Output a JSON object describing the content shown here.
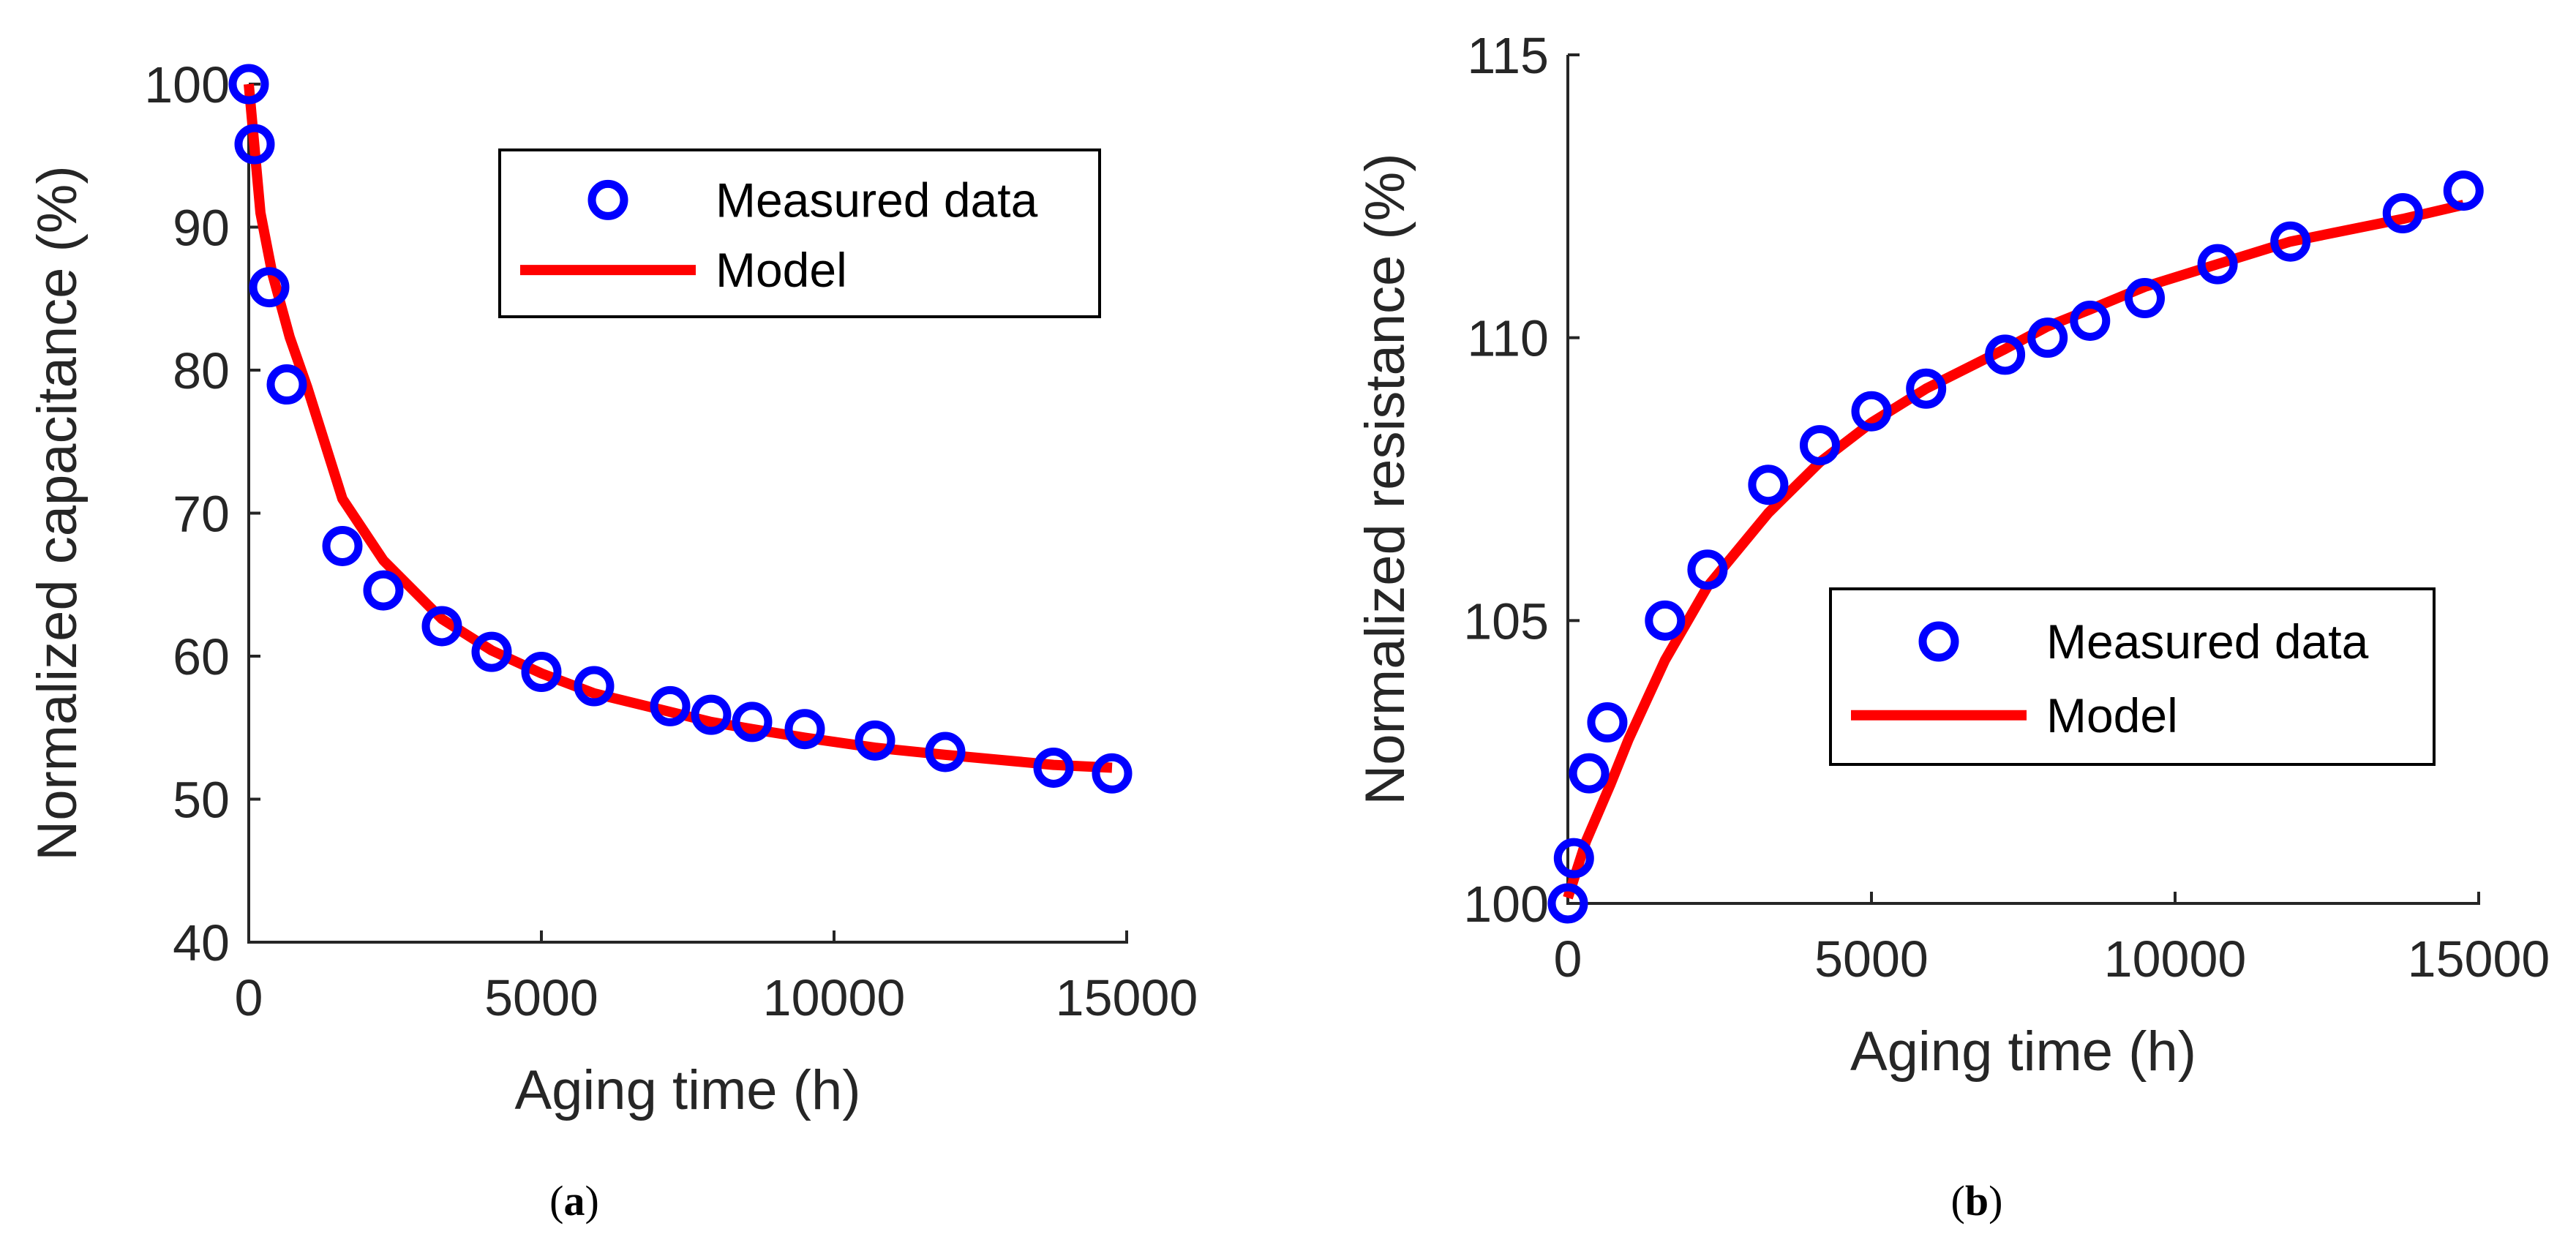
{
  "colors": {
    "marker": "#0000ff",
    "model": "#ff0000",
    "axis": "#262626"
  },
  "chart_data": [
    {
      "type": "scatter",
      "panel": "a",
      "caption": "a",
      "xlabel": "Aging time (h)",
      "ylabel": "Normalized capacitance (%)",
      "xlim": [
        0,
        15000
      ],
      "ylim": [
        40,
        100
      ],
      "xticks": [
        0,
        5000,
        10000,
        15000
      ],
      "yticks": [
        40,
        50,
        60,
        70,
        80,
        90,
        100
      ],
      "legend_position": "top-right",
      "series": [
        {
          "name": "Measured data",
          "style": "markers",
          "x": [
            0,
            100,
            350,
            650,
            1600,
            2300,
            3300,
            4150,
            5000,
            5900,
            7200,
            7900,
            8600,
            9500,
            10700,
            11900,
            13750,
            14750
          ],
          "y": [
            100,
            95.8,
            85.8,
            79,
            67.7,
            64.6,
            62.1,
            60.3,
            58.9,
            57.9,
            56.5,
            55.9,
            55.4,
            54.9,
            54.1,
            53.3,
            52.2,
            51.8
          ]
        },
        {
          "name": "Model",
          "style": "line",
          "x": [
            0,
            200,
            400,
            700,
            1000,
            1600,
            2300,
            3300,
            4150,
            5000,
            5900,
            7200,
            7900,
            8600,
            9500,
            10700,
            11900,
            13750,
            14750
          ],
          "y": [
            100,
            91,
            86.8,
            82.3,
            78.8,
            71,
            66.7,
            62.6,
            60.4,
            58.8,
            57.4,
            56.1,
            55.4,
            54.9,
            54.3,
            53.6,
            53.1,
            52.4,
            52.2
          ]
        }
      ]
    },
    {
      "type": "scatter",
      "panel": "b",
      "caption": "b",
      "xlabel": "Aging time (h)",
      "ylabel": "Normalized resistance (%)",
      "xlim": [
        0,
        15000
      ],
      "ylim": [
        100,
        115
      ],
      "xticks": [
        0,
        5000,
        10000,
        15000
      ],
      "yticks": [
        100,
        105,
        110,
        115
      ],
      "legend_position": "center-right",
      "series": [
        {
          "name": "Measured data",
          "style": "markers",
          "x": [
            0,
            100,
            350,
            650,
            1600,
            2300,
            3300,
            4150,
            5000,
            5900,
            7200,
            7900,
            8600,
            9500,
            10700,
            11900,
            13750,
            14750
          ],
          "y": [
            100,
            100.8,
            102.3,
            103.2,
            105,
            105.9,
            107.4,
            108.1,
            108.7,
            109.1,
            109.7,
            110,
            110.3,
            110.7,
            111.3,
            111.7,
            112.2,
            112.6
          ]
        },
        {
          "name": "Model",
          "style": "line",
          "x": [
            0,
            300,
            700,
            1000,
            1600,
            2300,
            3300,
            4150,
            5000,
            5900,
            7200,
            7900,
            8600,
            9500,
            10700,
            11900,
            13750,
            14750
          ],
          "y": [
            100.1,
            101.1,
            102.1,
            102.9,
            104.3,
            105.6,
            106.9,
            107.8,
            108.5,
            109.1,
            109.8,
            110.2,
            110.5,
            110.9,
            111.3,
            111.7,
            112.1,
            112.35
          ]
        }
      ]
    }
  ]
}
